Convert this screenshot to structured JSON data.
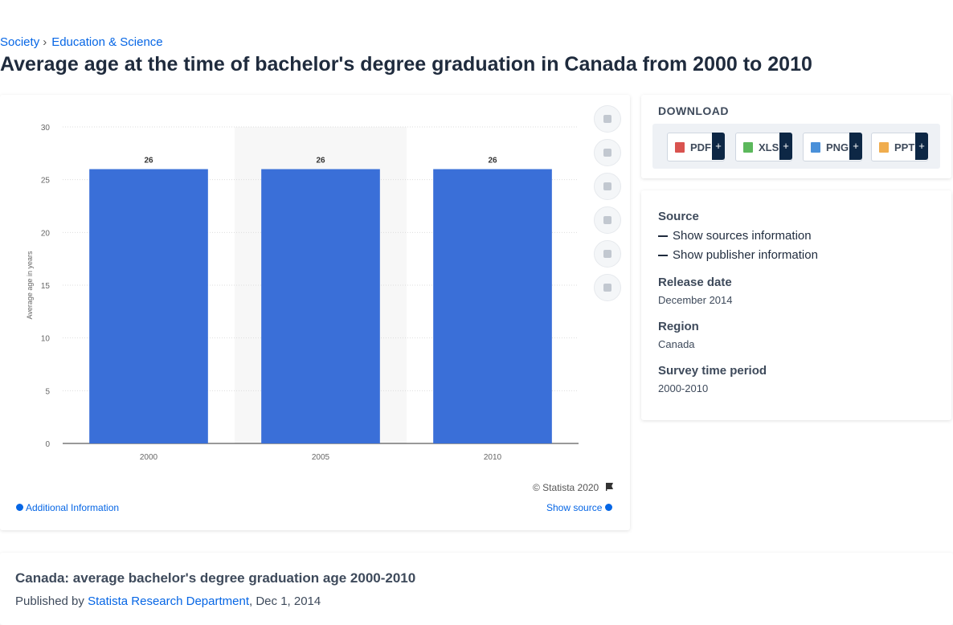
{
  "breadcrumb": {
    "items": [
      "Society",
      "Education & Science"
    ],
    "separator": "›"
  },
  "title": "Average age at the time of bachelor's degree graduation in Canada from 2000 to 2010",
  "chart_data": {
    "type": "bar",
    "y_label": "Average age in years",
    "categories": [
      "2000",
      "2005",
      "2010"
    ],
    "values": [
      26,
      26,
      26
    ],
    "color": "#3a6fd8",
    "ylim": [
      0,
      30
    ],
    "yticks": [
      0,
      5,
      10,
      15,
      20,
      25,
      30
    ],
    "grid": true,
    "copyright": "© Statista 2020"
  },
  "chart_footer": {
    "additional_info": "Additional Information",
    "show_source": "Show source"
  },
  "download": {
    "heading": "DOWNLOAD",
    "buttons": [
      {
        "label": "PDF",
        "plus": "+"
      },
      {
        "label": "XLS",
        "plus": "+"
      },
      {
        "label": "PNG",
        "plus": "+"
      },
      {
        "label": "PPT",
        "plus": "+"
      }
    ]
  },
  "details": {
    "source_heading": "Source",
    "show_sources": "Show sources information",
    "show_publisher": "Show publisher information",
    "release_heading": "Release date",
    "release": "December 2014",
    "region_heading": "Region",
    "region": "Canada",
    "period_heading": "Survey time period",
    "period": "2000-2010"
  },
  "publication": {
    "title": "Canada: average bachelor's degree graduation age 2000-2010",
    "published_by": "Published by",
    "publisher": "Statista Research Department",
    "date": ", Dec 1, 2014"
  }
}
